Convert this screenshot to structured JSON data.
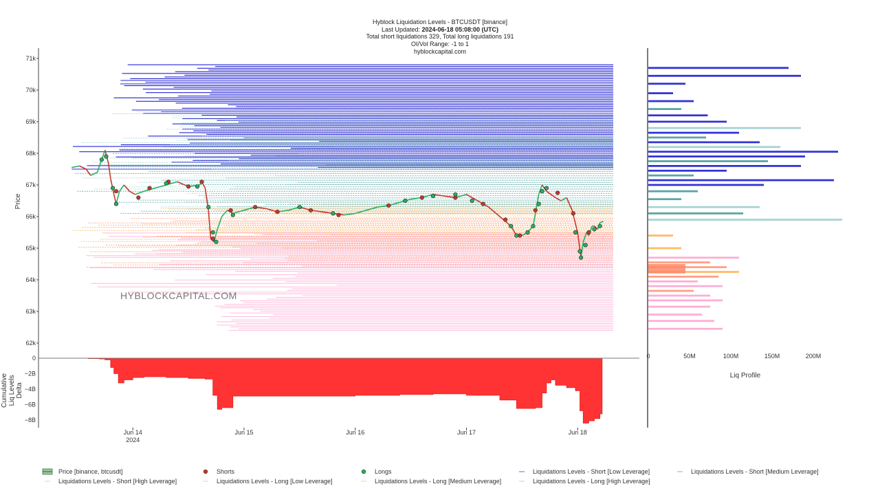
{
  "header": {
    "title": "Hyblock Liquidation Levels - BTCUSDT [binance]",
    "updated_prefix": "Last Updated: ",
    "updated_value": "2024-06-18 05:08:00 (UTC)",
    "totals": "Total short liquidations 329, Total long liquidations 191",
    "range": "OI/Vol Range: -1 to 1",
    "site": "hyblockcapital.com"
  },
  "watermark": "HYBLOCKCAPITAL.COM",
  "colors": {
    "price_line": "#c0392b",
    "price_line_up": "#27ae60",
    "short_dot": "#c0392b",
    "long_dot": "#27ae60",
    "short_low": "#0000cc",
    "short_medium": "#2f8f8f",
    "short_high": "#8fc9c9",
    "long_low": "#ff99cc",
    "long_medium": "#ffaa44",
    "long_high": "#ff8866",
    "delta_fill": "#ff3333"
  },
  "chart_data": [
    {
      "type": "line",
      "name": "Liquidation Levels Price Chart",
      "ylabel": "Price",
      "ylim": [
        61800,
        71300
      ],
      "yticks": [
        {
          "value": 62000,
          "label": "62k"
        },
        {
          "value": 63000,
          "label": "63k"
        },
        {
          "value": 64000,
          "label": "64k"
        },
        {
          "value": 65000,
          "label": "65k"
        },
        {
          "value": 66000,
          "label": "66k"
        },
        {
          "value": 67000,
          "label": "67k"
        },
        {
          "value": 68000,
          "label": "68k"
        },
        {
          "value": 69000,
          "label": "69k"
        },
        {
          "value": 70000,
          "label": "70k"
        },
        {
          "value": 71000,
          "label": "71k"
        }
      ],
      "xlim": [
        13.3,
        18.32
      ],
      "xticks": [
        {
          "value": 14,
          "label": "Jun 14",
          "sublabel": "2024"
        },
        {
          "value": 15,
          "label": "Jun 15",
          "sublabel": ""
        },
        {
          "value": 16,
          "label": "Jun 16",
          "sublabel": ""
        },
        {
          "value": 17,
          "label": "Jun 17",
          "sublabel": ""
        },
        {
          "value": 18,
          "label": "Jun 18",
          "sublabel": ""
        }
      ],
      "price_series": {
        "name": "Price [binance, btcusdt]",
        "x": [
          13.45,
          13.52,
          13.58,
          13.62,
          13.68,
          13.72,
          13.75,
          13.78,
          13.8,
          13.83,
          13.85,
          13.88,
          13.92,
          13.97,
          14.02,
          14.1,
          14.2,
          14.3,
          14.4,
          14.5,
          14.6,
          14.62,
          14.65,
          14.68,
          14.7,
          14.73,
          14.76,
          14.8,
          14.85,
          14.9,
          15.0,
          15.1,
          15.2,
          15.3,
          15.4,
          15.5,
          15.6,
          15.7,
          15.8,
          15.9,
          16.0,
          16.1,
          16.2,
          16.3,
          16.4,
          16.5,
          16.6,
          16.7,
          16.8,
          16.9,
          17.0,
          17.1,
          17.2,
          17.3,
          17.4,
          17.45,
          17.5,
          17.55,
          17.6,
          17.62,
          17.65,
          17.68,
          17.72,
          17.76,
          17.8,
          17.85,
          17.9,
          17.95,
          18.0,
          18.03,
          18.05,
          18.08,
          18.1,
          18.13,
          18.15,
          18.18,
          18.2,
          18.23
        ],
        "y": [
          67550,
          67600,
          67500,
          67300,
          67400,
          67800,
          68100,
          67700,
          67200,
          66700,
          66400,
          66800,
          67000,
          66800,
          66700,
          66800,
          66900,
          67000,
          67100,
          66950,
          67000,
          67100,
          66900,
          66200,
          65300,
          65200,
          65600,
          66000,
          66200,
          66100,
          66200,
          66300,
          66250,
          66150,
          66200,
          66300,
          66200,
          66150,
          66100,
          66050,
          66100,
          66200,
          66300,
          66350,
          66450,
          66550,
          66600,
          66700,
          66650,
          66600,
          66700,
          66500,
          66300,
          66000,
          65700,
          65400,
          65400,
          65500,
          65700,
          66100,
          66700,
          67000,
          66800,
          66700,
          66600,
          66500,
          66600,
          66200,
          65500,
          64700,
          65200,
          65500,
          65400,
          65700,
          65700,
          65600,
          65800,
          65850
        ]
      },
      "short_dots": {
        "name": "Shorts",
        "points": [
          [
            13.85,
            66800
          ],
          [
            14.05,
            66600
          ],
          [
            14.15,
            66900
          ],
          [
            14.32,
            67100
          ],
          [
            14.5,
            66950
          ],
          [
            14.62,
            67100
          ],
          [
            14.72,
            65300
          ],
          [
            14.88,
            66200
          ],
          [
            15.1,
            66300
          ],
          [
            15.3,
            66150
          ],
          [
            15.6,
            66200
          ],
          [
            15.85,
            66050
          ],
          [
            16.3,
            66350
          ],
          [
            16.6,
            66600
          ],
          [
            16.9,
            66600
          ],
          [
            17.15,
            66400
          ],
          [
            17.35,
            65900
          ],
          [
            17.48,
            65400
          ],
          [
            17.62,
            66200
          ],
          [
            17.82,
            66750
          ],
          [
            17.96,
            66100
          ],
          [
            18.1,
            65500
          ]
        ]
      },
      "long_dots": {
        "name": "Longs",
        "points": [
          [
            13.72,
            67800
          ],
          [
            13.76,
            67900
          ],
          [
            13.82,
            66900
          ],
          [
            13.85,
            66400
          ],
          [
            14.3,
            67050
          ],
          [
            14.58,
            66950
          ],
          [
            14.68,
            66300
          ],
          [
            14.72,
            65500
          ],
          [
            14.75,
            65200
          ],
          [
            14.9,
            66050
          ],
          [
            15.5,
            66300
          ],
          [
            15.8,
            66100
          ],
          [
            16.45,
            66500
          ],
          [
            16.7,
            66650
          ],
          [
            16.9,
            66700
          ],
          [
            17.05,
            66500
          ],
          [
            17.4,
            65700
          ],
          [
            17.45,
            65400
          ],
          [
            17.55,
            65500
          ],
          [
            17.6,
            65700
          ],
          [
            17.65,
            66400
          ],
          [
            17.68,
            66800
          ],
          [
            17.72,
            66900
          ],
          [
            17.98,
            65500
          ],
          [
            18.02,
            64900
          ],
          [
            18.03,
            64700
          ],
          [
            18.07,
            65100
          ],
          [
            18.15,
            65600
          ],
          [
            18.2,
            65700
          ]
        ]
      },
      "liquidation_level_bands": [
        {
          "category": "Liquidations Levels - Short [Low Leverage]",
          "from_price": 67500,
          "to_price": 70800
        },
        {
          "category": "Liquidations Levels - Short [Medium Leverage]",
          "from_price": 66100,
          "to_price": 68600
        },
        {
          "category": "Liquidations Levels - Short [High Leverage]",
          "from_price": 66100,
          "to_price": 69400
        },
        {
          "category": "Liquidations Levels - Long [Low Leverage]",
          "from_price": 62400,
          "to_price": 65500
        },
        {
          "category": "Liquidations Levels - Long [Medium Leverage]",
          "from_price": 65000,
          "to_price": 66500
        },
        {
          "category": "Liquidations Levels - Long [High Leverage]",
          "from_price": 64400,
          "to_price": 66000
        }
      ]
    },
    {
      "type": "area",
      "name": "Cumulative Liq Levels Delta",
      "ylabel": [
        "Cumulative",
        "Liq Levels",
        "Delta"
      ],
      "ylim": [
        -8800000000,
        100000000
      ],
      "yticks": [
        {
          "value": 0,
          "label": "0"
        },
        {
          "value": -2000000000,
          "label": "−2B"
        },
        {
          "value": -4000000000,
          "label": "−4B"
        },
        {
          "value": -6000000000,
          "label": "−6B"
        },
        {
          "value": -8000000000,
          "label": "−8B"
        }
      ],
      "x": [
        13.45,
        13.6,
        13.7,
        13.75,
        13.8,
        13.83,
        13.87,
        13.92,
        14.0,
        14.1,
        14.3,
        14.5,
        14.65,
        14.72,
        14.76,
        14.8,
        14.9,
        15.1,
        15.4,
        15.8,
        16.0,
        16.4,
        16.7,
        17.0,
        17.3,
        17.45,
        17.55,
        17.62,
        17.68,
        17.72,
        17.76,
        17.8,
        17.9,
        17.98,
        18.02,
        18.05,
        18.1,
        18.15,
        18.2,
        18.22
      ],
      "y": [
        0,
        -50000000,
        -100000000,
        -200000000,
        -1200000000,
        -2000000000,
        -3200000000,
        -2800000000,
        -2500000000,
        -2400000000,
        -2500000000,
        -2600000000,
        -2700000000,
        -4800000000,
        -6600000000,
        -6400000000,
        -4900000000,
        -4900000000,
        -4900000000,
        -4900000000,
        -4800000000,
        -4700000000,
        -4600000000,
        -4800000000,
        -5400000000,
        -6500000000,
        -6500000000,
        -6400000000,
        -4500000000,
        -3200000000,
        -2800000000,
        -3500000000,
        -3800000000,
        -4200000000,
        -6800000000,
        -8400000000,
        -8100000000,
        -7800000000,
        -7200000000,
        -7100000000
      ]
    },
    {
      "type": "bar",
      "orientation": "horizontal",
      "name": "Liq Profile",
      "xlabel": "Liq Profile",
      "xlim": [
        0,
        230
      ],
      "xticks": [
        {
          "value": 0,
          "label": "0"
        },
        {
          "value": 50,
          "label": "50M"
        },
        {
          "value": 100,
          "label": "100M"
        },
        {
          "value": 150,
          "label": "150M"
        },
        {
          "value": 200,
          "label": "200M"
        }
      ],
      "bars": [
        {
          "price": 70700,
          "value": 170,
          "kind": "short_low"
        },
        {
          "price": 70450,
          "value": 185,
          "kind": "short_low"
        },
        {
          "price": 70200,
          "value": 45,
          "kind": "short_low"
        },
        {
          "price": 69900,
          "value": 30,
          "kind": "short_low"
        },
        {
          "price": 69650,
          "value": 55,
          "kind": "short_low"
        },
        {
          "price": 69400,
          "value": 40,
          "kind": "short_medium"
        },
        {
          "price": 69200,
          "value": 72,
          "kind": "short_low"
        },
        {
          "price": 69000,
          "value": 95,
          "kind": "short_low"
        },
        {
          "price": 68800,
          "value": 185,
          "kind": "short_high"
        },
        {
          "price": 68650,
          "value": 110,
          "kind": "short_low"
        },
        {
          "price": 68500,
          "value": 70,
          "kind": "short_medium"
        },
        {
          "price": 68350,
          "value": 135,
          "kind": "short_low"
        },
        {
          "price": 68200,
          "value": 160,
          "kind": "short_high"
        },
        {
          "price": 68050,
          "value": 230,
          "kind": "short_low"
        },
        {
          "price": 67900,
          "value": 190,
          "kind": "short_low"
        },
        {
          "price": 67750,
          "value": 145,
          "kind": "short_medium"
        },
        {
          "price": 67600,
          "value": 185,
          "kind": "short_low"
        },
        {
          "price": 67450,
          "value": 95,
          "kind": "short_low"
        },
        {
          "price": 67300,
          "value": 55,
          "kind": "short_medium"
        },
        {
          "price": 67150,
          "value": 225,
          "kind": "short_low"
        },
        {
          "price": 67000,
          "value": 140,
          "kind": "short_low"
        },
        {
          "price": 66800,
          "value": 60,
          "kind": "short_medium"
        },
        {
          "price": 66550,
          "value": 40,
          "kind": "short_medium"
        },
        {
          "price": 66300,
          "value": 135,
          "kind": "short_high"
        },
        {
          "price": 66100,
          "value": 115,
          "kind": "short_medium"
        },
        {
          "price": 65900,
          "value": 235,
          "kind": "short_high"
        },
        {
          "price": 65400,
          "value": 30,
          "kind": "long_medium"
        },
        {
          "price": 65000,
          "value": 40,
          "kind": "long_medium"
        },
        {
          "price": 64700,
          "value": 110,
          "kind": "long_low"
        },
        {
          "price": 64550,
          "value": 75,
          "kind": "long_high"
        },
        {
          "price": 64400,
          "value": 95,
          "kind": "long_high"
        },
        {
          "price": 64250,
          "value": 110,
          "kind": "long_medium"
        },
        {
          "price": 64100,
          "value": 85,
          "kind": "long_high"
        },
        {
          "price": 63950,
          "value": 60,
          "kind": "long_low"
        },
        {
          "price": 63800,
          "value": 90,
          "kind": "long_low"
        },
        {
          "price": 63650,
          "value": 55,
          "kind": "long_high"
        },
        {
          "price": 63500,
          "value": 75,
          "kind": "long_low"
        },
        {
          "price": 63350,
          "value": 90,
          "kind": "long_low"
        },
        {
          "price": 63150,
          "value": 75,
          "kind": "long_low"
        },
        {
          "price": 62900,
          "value": 65,
          "kind": "long_low"
        },
        {
          "price": 62700,
          "value": 80,
          "kind": "long_low"
        },
        {
          "price": 62450,
          "value": 90,
          "kind": "long_low"
        }
      ]
    }
  ],
  "legend": [
    {
      "label": "Price [binance, btcusdt]",
      "kind": "price"
    },
    {
      "label": "Shorts",
      "kind": "short_dot"
    },
    {
      "label": "Longs",
      "kind": "long_dot"
    },
    {
      "label": "Liquidations Levels - Short [Low Leverage]",
      "kind": "short_low"
    },
    {
      "label": "Liquidations Levels - Short [Medium Leverage]",
      "kind": "short_medium"
    },
    {
      "label": "Liquidations Levels - Short [High Leverage]",
      "kind": "short_high"
    },
    {
      "label": "Liquidations Levels - Long [Low Leverage]",
      "kind": "long_low"
    },
    {
      "label": "Liquidations Levels - Long [Medium Leverage]",
      "kind": "long_medium"
    },
    {
      "label": "Liquidations Levels - Long [High Leverage]",
      "kind": "long_high"
    }
  ]
}
